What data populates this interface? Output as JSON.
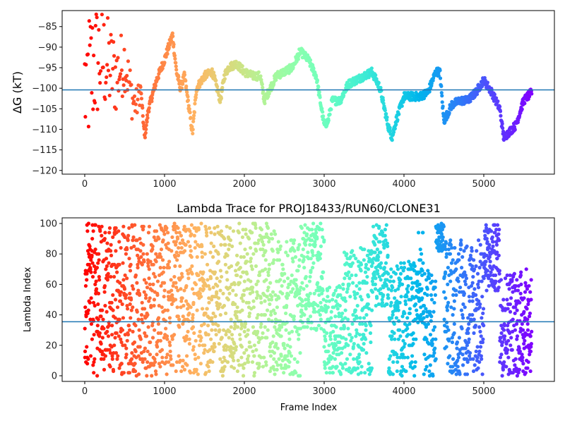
{
  "chart_data": [
    {
      "type": "scatter",
      "title": "",
      "xlabel": "",
      "ylabel": "ΔG (kT)",
      "xlim": [
        -283,
        5885
      ],
      "ylim": [
        -120.9,
        -81.1
      ],
      "xticks": [
        0,
        1000,
        2000,
        3000,
        4000,
        5000
      ],
      "xtick_labels": [
        "0",
        "1000",
        "2000",
        "3000",
        "4000",
        "5000"
      ],
      "yticks": [
        -85,
        -90,
        -95,
        -100,
        -105,
        -110,
        -115,
        -120
      ],
      "ytick_labels": [
        "−85",
        "−90",
        "−95",
        "−100",
        "−105",
        "−110",
        "−115",
        "−120"
      ],
      "hline": -100.4,
      "hline_color": "#1f77b4",
      "colormap": "rainbow_r",
      "x": [
        0,
        100,
        200,
        300,
        400,
        500,
        600,
        650,
        700,
        750,
        800,
        900,
        1000,
        1050,
        1100,
        1150,
        1200,
        1250,
        1300,
        1350,
        1400,
        1500,
        1600,
        1700,
        1750,
        1800,
        1900,
        2000,
        2100,
        2200,
        2250,
        2300,
        2400,
        2500,
        2600,
        2700,
        2800,
        2900,
        3000,
        3050,
        3100,
        3200,
        3300,
        3400,
        3500,
        3600,
        3700,
        3800,
        3850,
        3900,
        4000,
        4100,
        4200,
        4300,
        4400,
        4450,
        4500,
        4600,
        4700,
        4800,
        4900,
        5000,
        5100,
        5200,
        5250,
        5300,
        5400,
        5500,
        5600
      ],
      "y": [
        -100,
        -95,
        -92,
        -95,
        -97,
        -93,
        -103,
        -104,
        -100,
        -112,
        -105,
        -98,
        -93,
        -90,
        -87,
        -96,
        -100,
        -97,
        -104,
        -111,
        -100,
        -97,
        -96,
        -103,
        -97,
        -95,
        -94,
        -96,
        -97,
        -97,
        -103,
        -101,
        -97,
        -96,
        -95,
        -91,
        -93,
        -97,
        -109,
        -108,
        -103,
        -103,
        -99,
        -98,
        -97,
        -96,
        -100,
        -109,
        -112,
        -108,
        -102,
        -102,
        -102,
        -101,
        -96,
        -96,
        -108,
        -104,
        -103,
        -103,
        -101,
        -98,
        -101,
        -105,
        -112,
        -111,
        -109,
        -103,
        -101
      ]
    },
    {
      "type": "scatter",
      "title": "Lambda Trace for PROJ18433/RUN60/CLONE31",
      "xlabel": "Frame Index",
      "ylabel": "Lambda Index",
      "xlim": [
        -283,
        5885
      ],
      "ylim": [
        -3.7,
        103.7
      ],
      "xticks": [
        0,
        1000,
        2000,
        3000,
        4000,
        5000
      ],
      "xtick_labels": [
        "0",
        "1000",
        "2000",
        "3000",
        "4000",
        "5000"
      ],
      "yticks": [
        0,
        20,
        40,
        60,
        80,
        100
      ],
      "ytick_labels": [
        "0",
        "20",
        "40",
        "60",
        "80",
        "100"
      ],
      "hline": 35.5,
      "hline_color": "#1f77b4",
      "colormap": "rainbow_r",
      "segments": [
        {
          "start": 0,
          "end": 600,
          "low": 0,
          "high": 100
        },
        {
          "start": 600,
          "end": 1200,
          "low": 0,
          "high": 100
        },
        {
          "start": 1200,
          "end": 1800,
          "low": 0,
          "high": 100
        },
        {
          "start": 1800,
          "end": 2400,
          "low": 0,
          "high": 100
        },
        {
          "start": 2400,
          "end": 2700,
          "low": 0,
          "high": 90
        },
        {
          "start": 2700,
          "end": 3000,
          "low": 30,
          "high": 100
        },
        {
          "start": 3000,
          "end": 3250,
          "low": 0,
          "high": 60
        },
        {
          "start": 3250,
          "end": 3600,
          "low": 0,
          "high": 85
        },
        {
          "start": 3600,
          "end": 3800,
          "low": 45,
          "high": 100
        },
        {
          "start": 3800,
          "end": 4150,
          "low": 0,
          "high": 75
        },
        {
          "start": 4150,
          "end": 4250,
          "low": 35,
          "high": 95
        },
        {
          "start": 4250,
          "end": 4400,
          "low": 0,
          "high": 70
        },
        {
          "start": 4400,
          "end": 4500,
          "low": 80,
          "high": 100
        },
        {
          "start": 4500,
          "end": 5000,
          "low": 0,
          "high": 90
        },
        {
          "start": 5000,
          "end": 5200,
          "low": 55,
          "high": 100
        },
        {
          "start": 5200,
          "end": 5600,
          "low": 0,
          "high": 70
        }
      ]
    }
  ]
}
